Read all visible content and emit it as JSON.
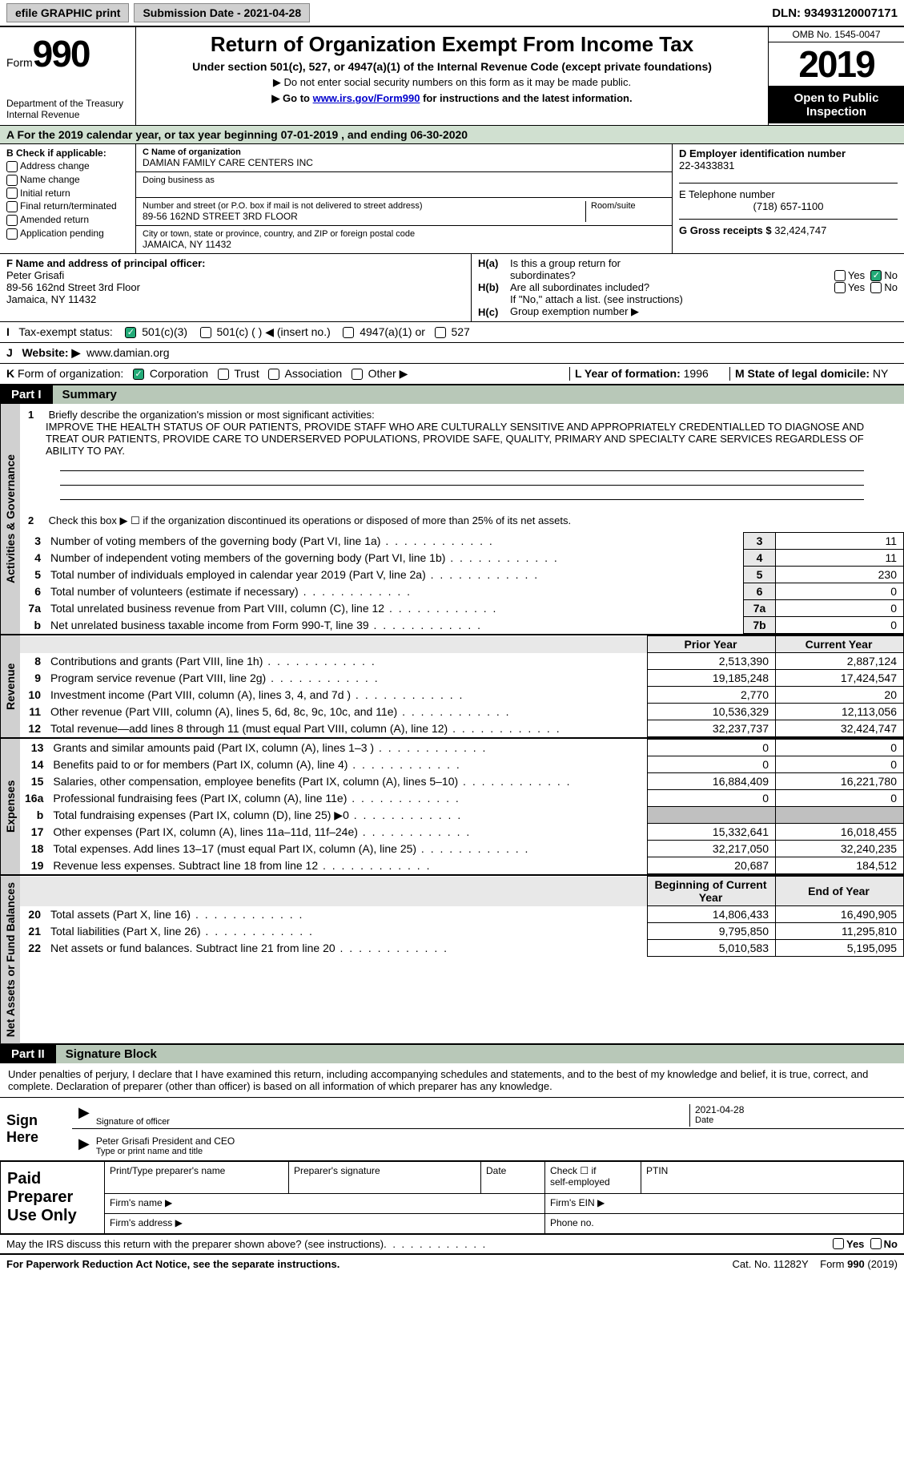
{
  "topbar": {
    "efile_label": "efile GRAPHIC print",
    "submission_label": "Submission Date - 2021-04-28",
    "dln_label": "DLN: 93493120007171"
  },
  "header": {
    "form_word": "Form",
    "form_number": "990",
    "dept": "Department of the Treasury",
    "irs": "Internal Revenue",
    "title": "Return of Organization Exempt From Income Tax",
    "subtitle": "Under section 501(c), 527, or 4947(a)(1) of the Internal Revenue Code (except private foundations)",
    "note1": "Do not enter social security numbers on this form as it may be made public.",
    "note2_pre": "Go to ",
    "note2_link": "www.irs.gov/Form990",
    "note2_post": " for instructions and the latest information.",
    "omb": "OMB No. 1545-0047",
    "year": "2019",
    "inspection": "Open to Public Inspection"
  },
  "period": {
    "line": "For the 2019 calendar year, or tax year beginning 07-01-2019   , and ending 06-30-2020",
    "prefix": "A"
  },
  "box_b": {
    "title": "B Check if applicable:",
    "opts": [
      "Address change",
      "Name change",
      "Initial return",
      "Final return/terminated",
      "Amended return",
      "Application pending"
    ]
  },
  "box_c": {
    "name_label": "C Name of organization",
    "name": "DAMIAN FAMILY CARE CENTERS INC",
    "dba_label": "Doing business as",
    "dba": "",
    "street_label": "Number and street (or P.O. box if mail is not delivered to street address)",
    "room_label": "Room/suite",
    "street": "89-56 162ND STREET 3RD FLOOR",
    "city_label": "City or town, state or province, country, and ZIP or foreign postal code",
    "city": "JAMAICA, NY  11432"
  },
  "box_d": {
    "label": "D Employer identification number",
    "value": "22-3433831"
  },
  "box_e": {
    "label": "E Telephone number",
    "value": "(718) 657-1100"
  },
  "box_g": {
    "label": "G Gross receipts $",
    "value": "32,424,747"
  },
  "box_f": {
    "label": "F  Name and address of principal officer:",
    "name": "Peter Grisafi",
    "addr1": "89-56 162nd Street 3rd Floor",
    "addr2": "Jamaica, NY  11432"
  },
  "box_h": {
    "a_label": "Is this a group return for",
    "a2": "subordinates?",
    "b_label": "Are all subordinates included?",
    "note": "If \"No,\" attach a list. (see instructions)",
    "c_label": "Group exemption number ▶",
    "ha_prefix": "H(a)",
    "hb_prefix": "H(b)",
    "hc_prefix": "H(c)",
    "yes": "Yes",
    "no": "No"
  },
  "row_i": {
    "label": "Tax-exempt status:",
    "opts": [
      "501(c)(3)",
      "501(c) (  ) ◀ (insert no.)",
      "4947(a)(1) or",
      "527"
    ],
    "prefix": "I"
  },
  "row_j": {
    "label": "Website: ▶",
    "value": "www.damian.org",
    "prefix": "J"
  },
  "row_k": {
    "label": "Form of organization:",
    "opts": [
      "Corporation",
      "Trust",
      "Association",
      "Other ▶"
    ],
    "prefix": "K"
  },
  "row_l": {
    "label": "L Year of formation:",
    "value": "1996"
  },
  "row_m": {
    "label": "M State of legal domicile:",
    "value": "NY"
  },
  "part1": {
    "tab": "Part I",
    "title": "Summary"
  },
  "vtabs": {
    "gov": "Activities & Governance",
    "rev": "Revenue",
    "exp": "Expenses",
    "net": "Net Assets or Fund Balances"
  },
  "line1": {
    "num": "1",
    "label": "Briefly describe the organization's mission or most significant activities:",
    "text": "IMPROVE THE HEALTH STATUS OF OUR PATIENTS, PROVIDE STAFF WHO ARE CULTURALLY SENSITIVE AND APPROPRIATELY CREDENTIALLED TO DIAGNOSE AND TREAT OUR PATIENTS, PROVIDE CARE TO UNDERSERVED POPULATIONS, PROVIDE SAFE, QUALITY, PRIMARY AND SPECIALTY CARE SERVICES REGARDLESS OF ABILITY TO PAY."
  },
  "line2": {
    "num": "2",
    "label": "Check this box ▶ ☐  if the organization discontinued its operations or disposed of more than 25% of its net assets."
  },
  "gov_lines": [
    {
      "n": "3",
      "d": "Number of voting members of the governing body (Part VI, line 1a)",
      "k": "3",
      "v": "11"
    },
    {
      "n": "4",
      "d": "Number of independent voting members of the governing body (Part VI, line 1b)",
      "k": "4",
      "v": "11"
    },
    {
      "n": "5",
      "d": "Total number of individuals employed in calendar year 2019 (Part V, line 2a)",
      "k": "5",
      "v": "230"
    },
    {
      "n": "6",
      "d": "Total number of volunteers (estimate if necessary)",
      "k": "6",
      "v": "0"
    },
    {
      "n": "7a",
      "d": "Total unrelated business revenue from Part VIII, column (C), line 12",
      "k": "7a",
      "v": "0"
    },
    {
      "n": "b",
      "d": "Net unrelated business taxable income from Form 990-T, line 39",
      "k": "7b",
      "v": "0"
    }
  ],
  "col_hdrs": {
    "prior": "Prior Year",
    "current": "Current Year",
    "boy": "Beginning of Current Year",
    "eoy": "End of Year"
  },
  "rev_lines": [
    {
      "n": "8",
      "d": "Contributions and grants (Part VIII, line 1h)",
      "p": "2,513,390",
      "c": "2,887,124"
    },
    {
      "n": "9",
      "d": "Program service revenue (Part VIII, line 2g)",
      "p": "19,185,248",
      "c": "17,424,547"
    },
    {
      "n": "10",
      "d": "Investment income (Part VIII, column (A), lines 3, 4, and 7d )",
      "p": "2,770",
      "c": "20"
    },
    {
      "n": "11",
      "d": "Other revenue (Part VIII, column (A), lines 5, 6d, 8c, 9c, 10c, and 11e)",
      "p": "10,536,329",
      "c": "12,113,056"
    },
    {
      "n": "12",
      "d": "Total revenue—add lines 8 through 11 (must equal Part VIII, column (A), line 12)",
      "p": "32,237,737",
      "c": "32,424,747"
    }
  ],
  "exp_lines": [
    {
      "n": "13",
      "d": "Grants and similar amounts paid (Part IX, column (A), lines 1–3 )",
      "p": "0",
      "c": "0"
    },
    {
      "n": "14",
      "d": "Benefits paid to or for members (Part IX, column (A), line 4)",
      "p": "0",
      "c": "0"
    },
    {
      "n": "15",
      "d": "Salaries, other compensation, employee benefits (Part IX, column (A), lines 5–10)",
      "p": "16,884,409",
      "c": "16,221,780"
    },
    {
      "n": "16a",
      "d": "Professional fundraising fees (Part IX, column (A), line 11e)",
      "p": "0",
      "c": "0"
    },
    {
      "n": "b",
      "d": "Total fundraising expenses (Part IX, column (D), line 25) ▶0",
      "p": "",
      "c": "",
      "shade": true
    },
    {
      "n": "17",
      "d": "Other expenses (Part IX, column (A), lines 11a–11d, 11f–24e)",
      "p": "15,332,641",
      "c": "16,018,455"
    },
    {
      "n": "18",
      "d": "Total expenses. Add lines 13–17 (must equal Part IX, column (A), line 25)",
      "p": "32,217,050",
      "c": "32,240,235"
    },
    {
      "n": "19",
      "d": "Revenue less expenses. Subtract line 18 from line 12",
      "p": "20,687",
      "c": "184,512"
    }
  ],
  "net_lines": [
    {
      "n": "20",
      "d": "Total assets (Part X, line 16)",
      "p": "14,806,433",
      "c": "16,490,905"
    },
    {
      "n": "21",
      "d": "Total liabilities (Part X, line 26)",
      "p": "9,795,850",
      "c": "11,295,810"
    },
    {
      "n": "22",
      "d": "Net assets or fund balances. Subtract line 21 from line 20",
      "p": "5,010,583",
      "c": "5,195,095"
    }
  ],
  "part2": {
    "tab": "Part II",
    "title": "Signature Block"
  },
  "sig": {
    "declaration": "Under penalties of perjury, I declare that I have examined this return, including accompanying schedules and statements, and to the best of my knowledge and belief, it is true, correct, and complete. Declaration of preparer (other than officer) is based on all information of which preparer has any knowledge.",
    "sign_here": "Sign Here",
    "sig_officer": "Signature of officer",
    "date": "Date",
    "date_val": "2021-04-28",
    "name_title": "Peter Grisafi President and CEO",
    "type_name": "Type or print name and title"
  },
  "preparer": {
    "title": "Paid Preparer Use Only",
    "h1": "Print/Type preparer's name",
    "h2": "Preparer's signature",
    "h3": "Date",
    "h4_pre": "Check ☐ if",
    "h4": "self-employed",
    "h5": "PTIN",
    "firm_name": "Firm's name  ▶",
    "firm_ein": "Firm's EIN ▶",
    "firm_addr": "Firm's address ▶",
    "phone": "Phone no."
  },
  "footer": {
    "discuss": "May the IRS discuss this return with the preparer shown above? (see instructions)",
    "yes": "Yes",
    "no": "No",
    "paperwork": "For Paperwork Reduction Act Notice, see the separate instructions.",
    "cat": "Cat. No. 11282Y",
    "form": "Form 990 (2019)"
  }
}
